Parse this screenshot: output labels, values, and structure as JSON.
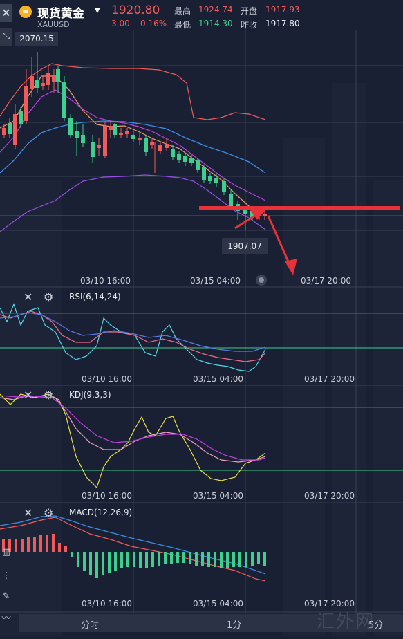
{
  "header": {
    "close_icon": "close-icon",
    "title": "现货黄金",
    "symbol": "XAUUSD",
    "price": "1920.80",
    "change": "3.00",
    "change_pct": "0.16%",
    "high_label": "最高",
    "high_value": "1924.74",
    "open_label": "开盘",
    "open_value": "1917.93",
    "low_label": "最低",
    "low_value": "1914.30",
    "prev_label": "昨收",
    "prev_value": "1917.80"
  },
  "main_chart": {
    "max_tag": "2070.15",
    "min_tag": "1907.07",
    "x_ticks": [
      "03/10 16:00",
      "03/15 04:00",
      "03/17 20:00"
    ]
  },
  "indicators": [
    {
      "label": "RSI(6,14,24)",
      "x_ticks": [
        "03/10 16:00",
        "03/15 04:00",
        "03/17 20:00"
      ]
    },
    {
      "label": "KDJ(9,3,3)",
      "x_ticks": [
        "03/10 16:00",
        "03/15 04:00",
        "03/17 20:00"
      ]
    },
    {
      "label": "MACD(12,26,9)",
      "x_ticks": [
        "03/10 16:00",
        "03/15 04:00",
        "03/17 20:00"
      ]
    }
  ],
  "bottom_bar": {
    "items": [
      "分时",
      "1分",
      "5分"
    ]
  },
  "watermark": "汇外网",
  "colors": {
    "background": "#1a2033",
    "up": "#f25a5a",
    "down": "#3ccf8e",
    "ma_orange": "#f0a070",
    "ma_purple": "#c040e0",
    "ma_blue": "#3a8ee8",
    "annotation": "#e8323a"
  }
}
